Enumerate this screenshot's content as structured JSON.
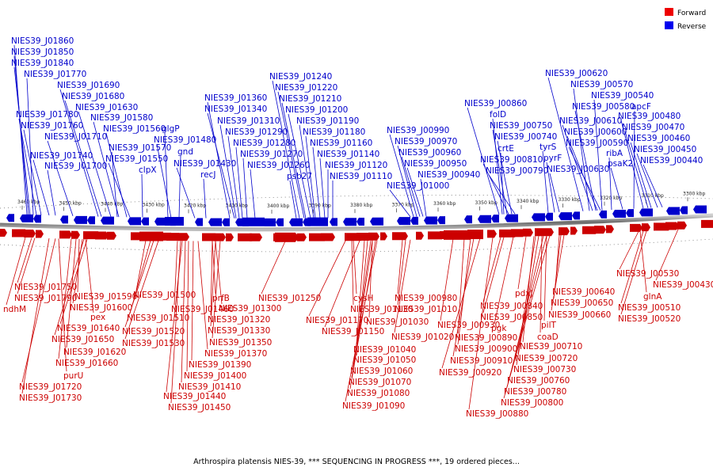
{
  "legend": {
    "forward_label": "Forward",
    "reverse_label": "Reverse",
    "forward_color": "#ee0000",
    "reverse_color": "#0000ee"
  },
  "caption": "Arthrospira platensis NIES-39, *** SEQUENCING IN PROGRESS ***, 19 ordered pieces...",
  "ticks": [
    "3460 kbp",
    "3450 kbp",
    "3440 kbp",
    "3430 kbp",
    "3420 kbp",
    "3410 kbp",
    "3400 kbp",
    "3390 kbp",
    "3380 kbp",
    "3370 kbp",
    "3360 kbp",
    "3350 kbp",
    "3340 kbp",
    "3330 kbp",
    "3320 kbp",
    "3310 kbp",
    "3300 kbp"
  ],
  "reverse_labels": [
    "NIES39_J01860",
    "NIES39_J01850",
    "NIES39_J01840",
    "NIES39_J01770",
    "NIES39_J01690",
    "NIES39_J01680",
    "NIES39_J01630",
    "NIES39_J01780",
    "NIES39_J01580",
    "NIES39_J01760",
    "NIES39_J01560",
    "NIES39_J01710",
    "NIES39_J01570",
    "NIES39_J01740",
    "NIES39_J01550",
    "NIES39_J01700",
    "glgP",
    "NIES39_J01480",
    "gnd",
    "NIES39_J01430",
    "clpX",
    "recJ",
    "NIES39_J01360",
    "NIES39_J01340",
    "NIES39_J01310",
    "NIES39_J01290",
    "NIES39_J01280",
    "NIES39_J01270",
    "NIES39_J01260",
    "NIES39_J01240",
    "NIES39_J01220",
    "NIES39_J01210",
    "NIES39_J01200",
    "NIES39_J01190",
    "NIES39_J01180",
    "NIES39_J01160",
    "NIES39_J01140",
    "NIES39_J01120",
    "NIES39_J01110",
    "psb27",
    "NIES39_J00990",
    "NIES39_J00970",
    "NIES39_J00960",
    "NIES39_J00950",
    "NIES39_J00940",
    "NIES39_J01000",
    "NIES39_J00860",
    "folD",
    "NIES39_J00750",
    "NIES39_J00740",
    "crtE",
    "NIES39_J00810",
    "NIES39_J00790",
    "NIES39_J00620",
    "NIES39_J00570",
    "NIES39_J00540",
    "NIES39_J00580",
    "apcF",
    "NIES39_J00610",
    "NIES39_J00480",
    "NIES39_J00600",
    "NIES39_J00470",
    "NIES39_J00590",
    "ribA",
    "NIES39_J00460",
    "tyrS",
    "NIES39_J00450",
    "pyrF",
    "psaK2",
    "NIES39_J00440",
    "NIES39_J00630"
  ],
  "forward_labels": [
    "NIES39_J01750",
    "NIES39_J01790",
    "ndhM",
    "NIES39_J01590",
    "NIES39_J01600",
    "pex",
    "NIES39_J01640",
    "NIES39_J01650",
    "NIES39_J01620",
    "NIES39_J01660",
    "purU",
    "NIES39_J01720",
    "NIES39_J01730",
    "NIES39_J01500",
    "NIES39_J01510",
    "NIES39_J01520",
    "NIES39_J01530",
    "NIES39_J01460",
    "prfB",
    "NIES39_J01300",
    "NIES39_J01320",
    "NIES39_J01330",
    "NIES39_J01350",
    "NIES39_J01370",
    "NIES39_J01390",
    "NIES39_J01400",
    "NIES39_J01410",
    "NIES39_J01440",
    "NIES39_J01450",
    "NIES39_J01250",
    "cysH",
    "NIES39_J01130",
    "NIES39_J01170",
    "NIES39_J01150",
    "NIES39_J01030",
    "NIES39_J01040",
    "NIES39_J01050",
    "NIES39_J01060",
    "NIES39_J01070",
    "NIES39_J01080",
    "NIES39_J01090",
    "NIES39_J00980",
    "NIES39_J01010",
    "NIES39_J01020",
    "NIES39_J00930",
    "NIES39_J00890",
    "NIES39_J00900",
    "NIES39_J00910",
    "NIES39_J00920",
    "NIES39_J00880",
    "pdxJ",
    "NIES39_J00840",
    "NIES39_J00850",
    "pgk",
    "pilT",
    "coaD",
    "NIES39_J00710",
    "NIES39_J00720",
    "NIES39_J00730",
    "NIES39_J00760",
    "NIES39_J00780",
    "NIES39_J00800",
    "NIES39_J00640",
    "NIES39_J00650",
    "NIES39_J00660",
    "NIES39_J00530",
    "glnA",
    "NIES39_J00430",
    "NIES39_J00510",
    "NIES39_J00520"
  ]
}
